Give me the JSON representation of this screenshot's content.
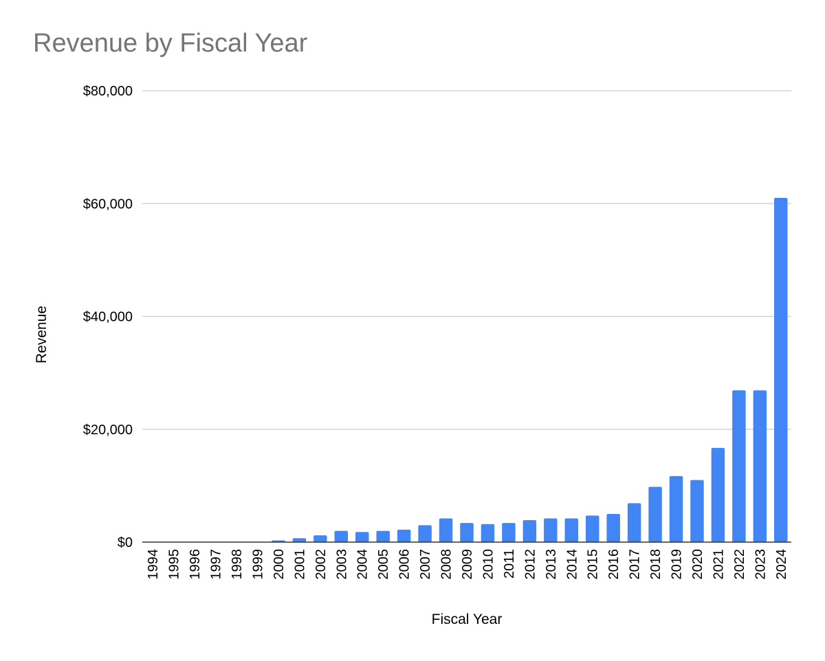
{
  "chart_data": {
    "type": "bar",
    "title": "Revenue by Fiscal Year",
    "xlabel": "Fiscal Year",
    "ylabel": "Revenue",
    "categories": [
      "1994",
      "1995",
      "1996",
      "1997",
      "1998",
      "1999",
      "2000",
      "2001",
      "2002",
      "2003",
      "2004",
      "2005",
      "2006",
      "2007",
      "2008",
      "2009",
      "2010",
      "2011",
      "2012",
      "2013",
      "2014",
      "2015",
      "2016",
      "2017",
      "2018",
      "2019",
      "2020",
      "2021",
      "2022",
      "2023",
      "2024"
    ],
    "values": [
      0,
      0,
      0,
      0,
      0,
      0,
      300,
      700,
      1200,
      2000,
      1800,
      2000,
      2200,
      3000,
      4200,
      3400,
      3200,
      3400,
      3900,
      4200,
      4200,
      4700,
      5000,
      6900,
      9800,
      11700,
      11000,
      16700,
      26900,
      26900,
      61000
    ],
    "ylim": [
      0,
      80000
    ],
    "yticks": [
      0,
      20000,
      40000,
      60000,
      80000
    ],
    "ytick_labels": [
      "$0",
      "$20,000",
      "$40,000",
      "$60,000",
      "$80,000"
    ],
    "grid": true,
    "legend": "none",
    "colors": {
      "bar": "#4285f4",
      "grid": "#cccccc",
      "axis": "#333333",
      "title": "#757575"
    }
  }
}
